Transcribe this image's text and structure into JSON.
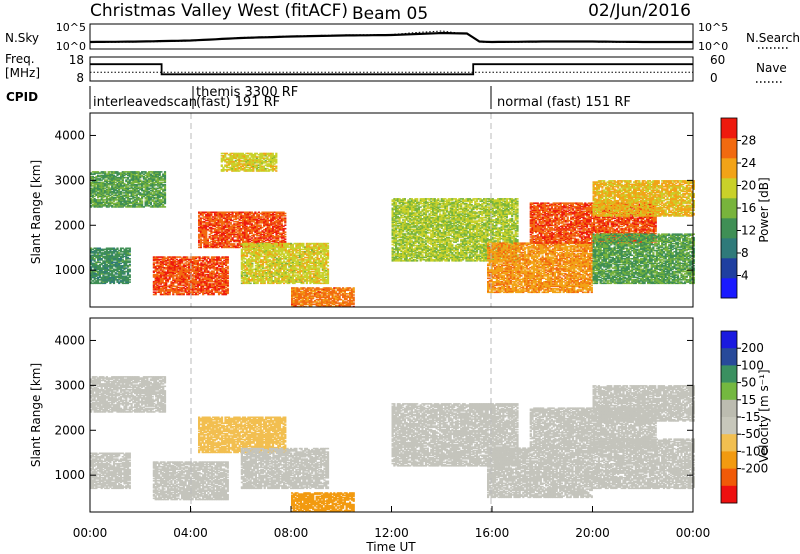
{
  "header": {
    "title": "Christmas Valley West (fitACF)",
    "beam": "Beam 05",
    "date": "02/Jun/2016"
  },
  "colors": {
    "power_scale": [
      "#1a1aff",
      "#1f3fa0",
      "#2f7a7a",
      "#3f8f55",
      "#78b43c",
      "#c9d12a",
      "#f2a317",
      "#f26a10",
      "#ee1a0e"
    ],
    "velocity_scale": [
      "#ee1010",
      "#f05a08",
      "#f29a10",
      "#f2bf50",
      "#c7c7bb",
      "#bcbcb0",
      "#74b840",
      "#3a9060",
      "#284a9a",
      "#1a1ae0"
    ],
    "ground_scatter": "#c4c4bc"
  },
  "icons": [
    "legend-dotted-line-icon",
    "legend-dotted-line-icon"
  ],
  "chart_data": [
    {
      "type": "line",
      "panel": "noise",
      "ylabel": "N.Sky",
      "right_label": "N.Search",
      "yticks_left": [
        "10^5",
        "10^0"
      ],
      "yticks_right": [
        "10^5",
        "10^0"
      ],
      "x_hours": [
        0,
        2,
        4,
        6,
        8,
        10,
        12,
        13,
        14,
        15,
        15.5,
        16,
        18,
        20,
        22,
        24
      ],
      "log10_n_sky": [
        1.4,
        1.5,
        1.7,
        2.2,
        2.5,
        2.7,
        2.8,
        3.0,
        3.2,
        3.1,
        1.5,
        1.4,
        1.5,
        1.5,
        1.4,
        1.4
      ],
      "log10_n_search": [
        1.3,
        1.4,
        1.6,
        2.3,
        2.6,
        2.8,
        2.9,
        3.3,
        3.6,
        3.0,
        1.4,
        1.3,
        1.4,
        1.4,
        1.3,
        1.3
      ]
    },
    {
      "type": "line",
      "panel": "frequency",
      "ylabel_line1": "Freq.",
      "ylabel_line2": "[MHz]",
      "right_label": "Nave",
      "yticks_left": [
        "18",
        "8"
      ],
      "yticks_right": [
        "60",
        "0"
      ],
      "freq_segments": [
        {
          "start_hour": 0,
          "end_hour": 2.85,
          "freq_mhz": 15.0
        },
        {
          "start_hour": 2.85,
          "end_hour": 15.25,
          "freq_mhz": 10.8
        },
        {
          "start_hour": 15.25,
          "end_hour": 24,
          "freq_mhz": 15.0
        }
      ],
      "nave_segments": [
        {
          "start_hour": 0,
          "end_hour": 24,
          "nave": 22
        }
      ]
    },
    {
      "type": "table",
      "panel": "cpid",
      "label": "CPID",
      "entries": [
        {
          "start_hour": 0,
          "text": "interleavedscan"
        },
        {
          "start_hour": 4.0,
          "text": "themis 3300 RF"
        },
        {
          "start_hour": 4.0,
          "text": "(fast) 191 RF"
        },
        {
          "start_hour": 16.0,
          "text": "normal (fast) 151 RF"
        }
      ]
    },
    {
      "type": "heatmap",
      "panel": "power",
      "ylabel": "Slant Range [km]",
      "ylim": [
        180,
        4500
      ],
      "yticks": [
        1000,
        2000,
        3000,
        4000
      ],
      "xlim": [
        0,
        24
      ],
      "colorbar": {
        "label": "Power [dB]",
        "ticks": [
          "4",
          "8",
          "12",
          "16",
          "20",
          "24",
          "28"
        ],
        "range": [
          0,
          32
        ]
      },
      "regions": [
        {
          "t0": 0.0,
          "t1": 3.0,
          "r0": 2400,
          "r1": 3200,
          "value": 14
        },
        {
          "t0": 0.0,
          "t1": 1.6,
          "r0": 700,
          "r1": 1500,
          "value": 12
        },
        {
          "t0": 2.5,
          "t1": 5.5,
          "r0": 450,
          "r1": 1300,
          "value": 28
        },
        {
          "t0": 4.3,
          "t1": 7.8,
          "r0": 1500,
          "r1": 2300,
          "value": 28
        },
        {
          "t0": 5.2,
          "t1": 7.4,
          "r0": 3200,
          "r1": 3600,
          "value": 20
        },
        {
          "t0": 6.0,
          "t1": 9.5,
          "r0": 700,
          "r1": 1600,
          "value": 20
        },
        {
          "t0": 8.0,
          "t1": 10.5,
          "r0": 180,
          "r1": 600,
          "value": 26
        },
        {
          "t0": 12.0,
          "t1": 17.0,
          "r0": 1200,
          "r1": 2600,
          "value": 18
        },
        {
          "t0": 15.8,
          "t1": 20.0,
          "r0": 500,
          "r1": 1600,
          "value": 24
        },
        {
          "t0": 17.5,
          "t1": 22.5,
          "r0": 1600,
          "r1": 2500,
          "value": 28
        },
        {
          "t0": 20.0,
          "t1": 24.0,
          "r0": 2200,
          "r1": 3000,
          "value": 22
        },
        {
          "t0": 20.0,
          "t1": 24.0,
          "r0": 700,
          "r1": 1800,
          "value": 14
        }
      ]
    },
    {
      "type": "heatmap",
      "panel": "velocity",
      "ylabel": "Slant Range [km]",
      "xlabel": "Time UT",
      "ylim": [
        180,
        4500
      ],
      "yticks": [
        1000,
        2000,
        3000,
        4000
      ],
      "xlim": [
        0,
        24
      ],
      "xticks": [
        "00:00",
        "04:00",
        "08:00",
        "12:00",
        "16:00",
        "20:00",
        "00:00"
      ],
      "colorbar": {
        "label": "Velocity [m s⁻¹]",
        "ticks": [
          "200",
          "100",
          "50",
          "15",
          "-15",
          "-50",
          "-100",
          "-200"
        ]
      },
      "regions": [
        {
          "t0": 0.0,
          "t1": 3.0,
          "r0": 2400,
          "r1": 3200,
          "value": 0
        },
        {
          "t0": 0.0,
          "t1": 1.6,
          "r0": 700,
          "r1": 1500,
          "value": 0
        },
        {
          "t0": 2.5,
          "t1": 5.5,
          "r0": 450,
          "r1": 1300,
          "value": 0
        },
        {
          "t0": 4.3,
          "t1": 7.8,
          "r0": 1500,
          "r1": 2300,
          "value": -40
        },
        {
          "t0": 6.0,
          "t1": 9.5,
          "r0": 700,
          "r1": 1600,
          "value": 0
        },
        {
          "t0": 8.0,
          "t1": 10.5,
          "r0": 180,
          "r1": 600,
          "value": -90
        },
        {
          "t0": 12.0,
          "t1": 17.0,
          "r0": 1200,
          "r1": 2600,
          "value": 0
        },
        {
          "t0": 15.8,
          "t1": 20.0,
          "r0": 500,
          "r1": 1600,
          "value": 0
        },
        {
          "t0": 17.5,
          "t1": 22.5,
          "r0": 1600,
          "r1": 2500,
          "value": 0
        },
        {
          "t0": 20.0,
          "t1": 24.0,
          "r0": 2200,
          "r1": 3000,
          "value": 0
        },
        {
          "t0": 20.0,
          "t1": 24.0,
          "r0": 700,
          "r1": 1800,
          "value": 0
        }
      ]
    }
  ]
}
